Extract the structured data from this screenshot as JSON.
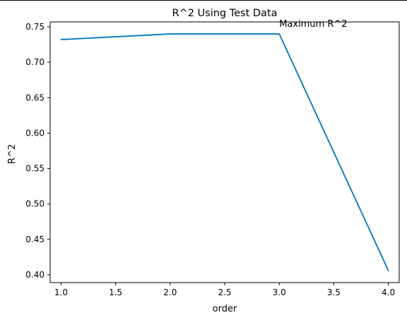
{
  "chart_data": {
    "type": "line",
    "title": "R^2 Using Test Data",
    "xlabel": "order",
    "ylabel": "R^2",
    "x": [
      1.0,
      2.0,
      3.0,
      4.0
    ],
    "series": [
      {
        "values": [
          0.732,
          0.74,
          0.74,
          0.406
        ]
      }
    ],
    "xlim": [
      0.9,
      4.1
    ],
    "ylim": [
      0.389,
      0.757
    ],
    "xticks": [
      1.0,
      1.5,
      2.0,
      2.5,
      3.0,
      3.5,
      4.0
    ],
    "xtick_labels": [
      "1.0",
      "1.5",
      "2.0",
      "2.5",
      "3.0",
      "3.5",
      "4.0"
    ],
    "yticks": [
      0.4,
      0.45,
      0.5,
      0.55,
      0.6,
      0.65,
      0.7,
      0.75
    ],
    "ytick_labels": [
      "0.40",
      "0.45",
      "0.50",
      "0.55",
      "0.60",
      "0.65",
      "0.70",
      "0.75"
    ],
    "annotation": {
      "text": "Maximum R^2",
      "x": 3.0,
      "y": 0.75
    },
    "line_color": "#0077bb",
    "grid": false
  }
}
